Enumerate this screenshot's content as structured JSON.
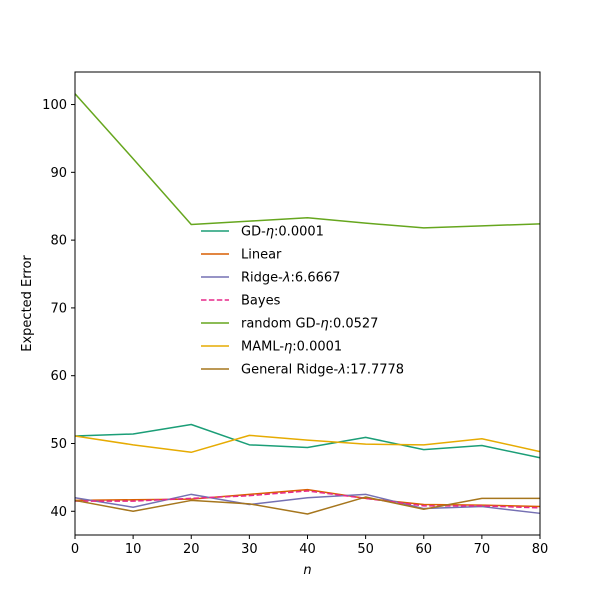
{
  "chart_data": {
    "type": "line",
    "title": "",
    "xlabel": "n",
    "ylabel": "Expected Error",
    "xlim": [
      0,
      80
    ],
    "ylim": [
      36.5,
      104.8
    ],
    "x_ticks": [
      0,
      10,
      20,
      30,
      40,
      50,
      60,
      70,
      80
    ],
    "y_ticks": [
      40,
      50,
      60,
      70,
      80,
      90,
      100
    ],
    "grid": false,
    "legend_position": "center",
    "x": [
      0,
      10,
      20,
      30,
      40,
      50,
      60,
      70,
      80
    ],
    "series": [
      {
        "name": "GD-η:0.0001",
        "label_prefix": "GD-",
        "label_symbol": "η",
        "label_suffix": ":0.0001",
        "color": "#1b9e77",
        "dash": "solid",
        "values": [
          51.1,
          51.4,
          52.8,
          49.8,
          49.4,
          50.9,
          49.1,
          49.7,
          47.9
        ]
      },
      {
        "name": "Linear",
        "label_prefix": "Linear",
        "label_symbol": "",
        "label_suffix": "",
        "color": "#d95f02",
        "dash": "solid",
        "values": [
          41.6,
          41.7,
          41.8,
          42.5,
          43.2,
          41.9,
          41.0,
          40.9,
          40.7
        ]
      },
      {
        "name": "Ridge-λ:6.6667",
        "label_prefix": "Ridge-",
        "label_symbol": "λ",
        "label_suffix": ":6.6667",
        "color": "#7570b3",
        "dash": "solid",
        "values": [
          42.0,
          40.6,
          42.5,
          41.0,
          42.0,
          42.5,
          40.4,
          40.7,
          39.7
        ]
      },
      {
        "name": "Bayes",
        "label_prefix": "Bayes",
        "label_symbol": "",
        "label_suffix": "",
        "color": "#e7298a",
        "dash": "dashed",
        "values": [
          41.5,
          41.5,
          41.9,
          42.3,
          43.0,
          41.9,
          40.8,
          40.8,
          40.5
        ]
      },
      {
        "name": "random GD-η:0.0527",
        "label_prefix": "random GD-",
        "label_symbol": "η",
        "label_suffix": ":0.0527",
        "color": "#66a61e",
        "dash": "solid",
        "values": [
          101.6,
          92.0,
          82.3,
          82.8,
          83.3,
          82.5,
          81.8,
          82.1,
          82.4
        ]
      },
      {
        "name": "MAML-η:0.0001",
        "label_prefix": "MAML-",
        "label_symbol": "η",
        "label_suffix": ":0.0001",
        "color": "#e6ab02",
        "dash": "solid",
        "values": [
          51.1,
          49.8,
          48.7,
          51.2,
          50.5,
          49.9,
          49.8,
          50.7,
          48.8
        ]
      },
      {
        "name": "General Ridge-λ:17.7778",
        "label_prefix": "General Ridge-",
        "label_symbol": "λ",
        "label_suffix": ":17.7778",
        "color": "#a6761d",
        "dash": "solid",
        "values": [
          41.6,
          40.0,
          41.6,
          41.1,
          39.6,
          42.1,
          40.3,
          41.9,
          41.9
        ]
      }
    ]
  }
}
